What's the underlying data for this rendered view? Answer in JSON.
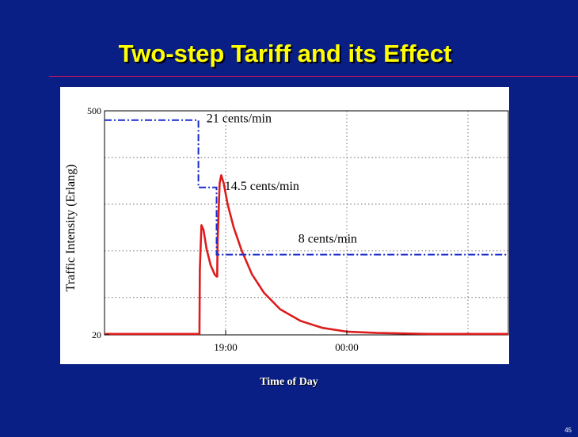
{
  "slide": {
    "title": "Two-step Tariff and its Effect",
    "page_number": "45"
  },
  "colors": {
    "background": "#0a1f86",
    "title": "#ffff00",
    "title_rule": "#c0145a",
    "traffic_line": "#dd1c1c",
    "tariff_line": "#1a2ccc"
  },
  "chart_data": {
    "type": "line",
    "title": "",
    "xlabel": "Time of Day",
    "ylabel": "Traffic Intensity (Erlang)",
    "xlim": [
      0,
      20
    ],
    "ylim": [
      20,
      500
    ],
    "x_unit_note": "",
    "x_ticks": [
      {
        "x": 6,
        "label": "19:00"
      },
      {
        "x": 12,
        "label": "00:00"
      }
    ],
    "y_ticks": [
      {
        "y": 500,
        "label": "500"
      },
      {
        "y": 20,
        "label": "20"
      }
    ],
    "grid": true,
    "grid_x": [
      6,
      12,
      18
    ],
    "grid_y": [
      100,
      200,
      300,
      400
    ],
    "series": [
      {
        "name": "",
        "role": "traffic",
        "points": [
          [
            0,
            22
          ],
          [
            4.7,
            22
          ],
          [
            4.72,
            160
          ],
          [
            4.8,
            255
          ],
          [
            4.9,
            245
          ],
          [
            5.05,
            205
          ],
          [
            5.25,
            170
          ],
          [
            5.45,
            150
          ],
          [
            5.55,
            145
          ],
          [
            5.58,
            145
          ],
          [
            5.6,
            220
          ],
          [
            5.7,
            345
          ],
          [
            5.78,
            362
          ],
          [
            5.9,
            345
          ],
          [
            6.1,
            300
          ],
          [
            6.4,
            250
          ],
          [
            6.8,
            200
          ],
          [
            7.3,
            150
          ],
          [
            7.9,
            110
          ],
          [
            8.7,
            75
          ],
          [
            9.7,
            50
          ],
          [
            10.8,
            35
          ],
          [
            12.0,
            27
          ],
          [
            13.5,
            24
          ],
          [
            16,
            22
          ],
          [
            20,
            22
          ]
        ]
      },
      {
        "name": "",
        "role": "tariff",
        "points": [
          [
            0,
            480
          ],
          [
            4.65,
            480
          ],
          [
            4.65,
            336
          ],
          [
            5.55,
            336
          ],
          [
            5.55,
            192
          ],
          [
            20,
            192
          ]
        ]
      }
    ],
    "annotations": [
      {
        "text": "21 cents/min",
        "x": 5.05,
        "y": 475
      },
      {
        "text": "14.5 cents/min",
        "x": 5.95,
        "y": 330
      },
      {
        "text": "8 cents/min",
        "x": 9.6,
        "y": 218
      }
    ]
  }
}
